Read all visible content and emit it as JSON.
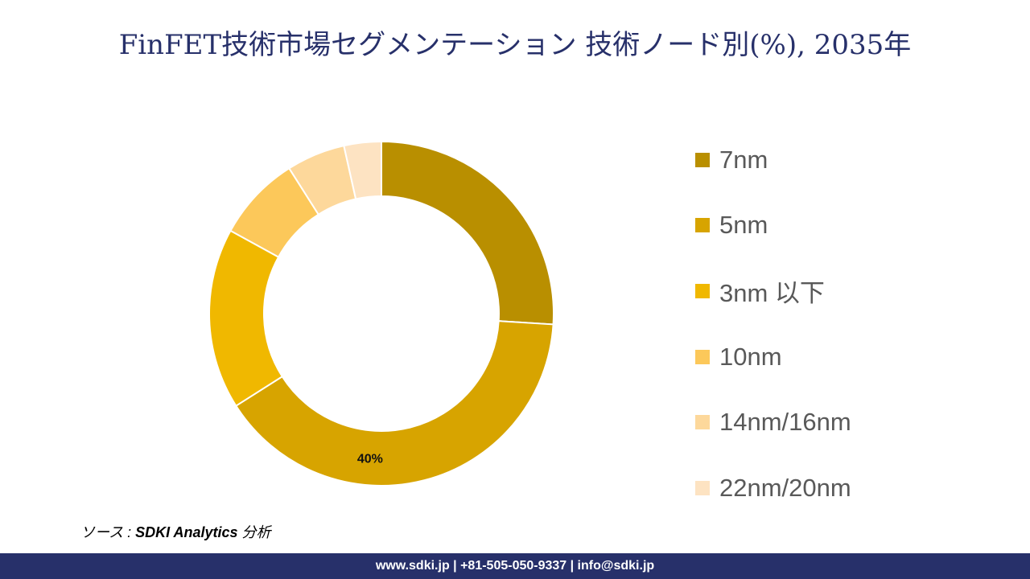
{
  "title": "FinFET技術市場セグメンテーション 技術ノード別(%), 2035年",
  "chart_data": {
    "type": "pie",
    "subtype": "donut",
    "title": "FinFET技術市場セグメンテーション 技術ノード別(%), 2035年",
    "categories": [
      "7nm",
      "5nm",
      "3nm 以下",
      "10nm",
      "14nm/16nm",
      "22nm/20nm"
    ],
    "values": [
      26,
      40,
      17,
      8,
      5.5,
      3.5
    ],
    "colors": [
      "#b98f00",
      "#d7a400",
      "#f0b800",
      "#fcc85a",
      "#fdd89b",
      "#fde3c2"
    ],
    "data_labels": [
      null,
      "40%",
      null,
      null,
      null,
      null
    ],
    "legend_position": "right"
  },
  "source": {
    "prefix": "ソース : ",
    "text": "SDKI Analytics",
    "suffix": " 分析"
  },
  "footer": "www.sdki.jp | +81-505-050-9337 | info@sdki.jp"
}
